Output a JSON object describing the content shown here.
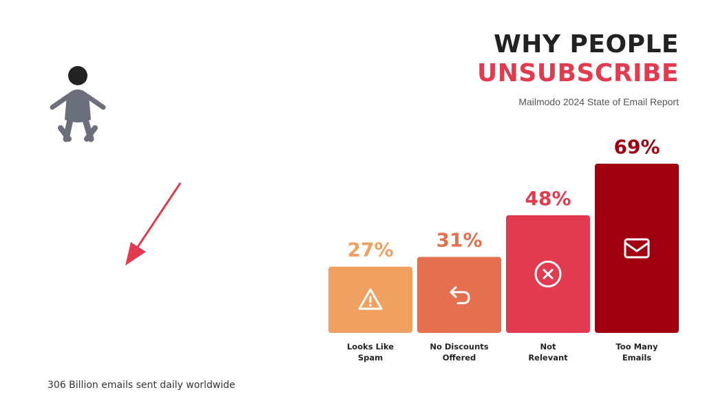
{
  "title_line1": "WHY PEOPLE",
  "title_line2": "UNSUBSCRIBE",
  "subtitle": "Mailmodo 2024 State of Email Report",
  "footer": "306 Billion emails sent daily worldwide",
  "colors": {
    "title_dark": "#222222",
    "title_accent": "#e23a4e",
    "figure": "#6b6f7c",
    "figure_head": "#222222",
    "arrow": "#e23a4e"
  },
  "chart_data": {
    "type": "bar",
    "title": "WHY PEOPLE UNSUBSCRIBE",
    "categories": [
      [
        "Looks Like",
        "Spam"
      ],
      [
        "No Discounts",
        "Offered"
      ],
      [
        "Not",
        "Relevant"
      ],
      [
        "Too Many",
        "Emails"
      ]
    ],
    "values": [
      27,
      31,
      48,
      69
    ],
    "value_labels": [
      "27%",
      "31%",
      "48%",
      "69%"
    ],
    "bar_colors": [
      "#f0a060",
      "#e4704f",
      "#e23a4e",
      "#a0000f"
    ],
    "label_colors": [
      "#f0a060",
      "#e4704f",
      "#e23a4e",
      "#a0000f"
    ],
    "icons": [
      "warning-triangle-icon",
      "reply-arrow-icon",
      "x-circle-icon",
      "envelope-icon"
    ],
    "ylim": [
      0,
      69
    ],
    "grid": false,
    "legend": "none"
  }
}
